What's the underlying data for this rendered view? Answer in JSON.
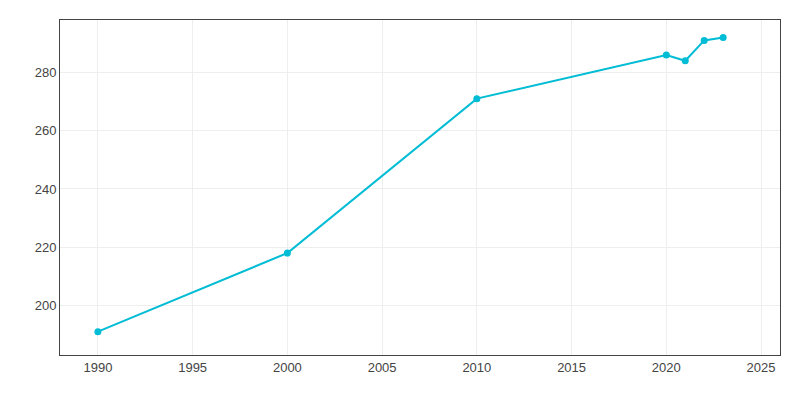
{
  "chart_data": {
    "type": "line",
    "x": [
      1990,
      2000,
      2010,
      2020,
      2021,
      2022,
      2023
    ],
    "values": [
      191,
      218,
      271,
      286,
      284,
      291,
      292
    ],
    "color": "#00BCD4",
    "marker": "circle",
    "xlim": [
      1988,
      2026
    ],
    "ylim": [
      183,
      298
    ],
    "xticks": [
      1990,
      1995,
      2000,
      2005,
      2010,
      2015,
      2020,
      2025
    ],
    "yticks": [
      200,
      220,
      240,
      260,
      280
    ],
    "grid": true
  }
}
